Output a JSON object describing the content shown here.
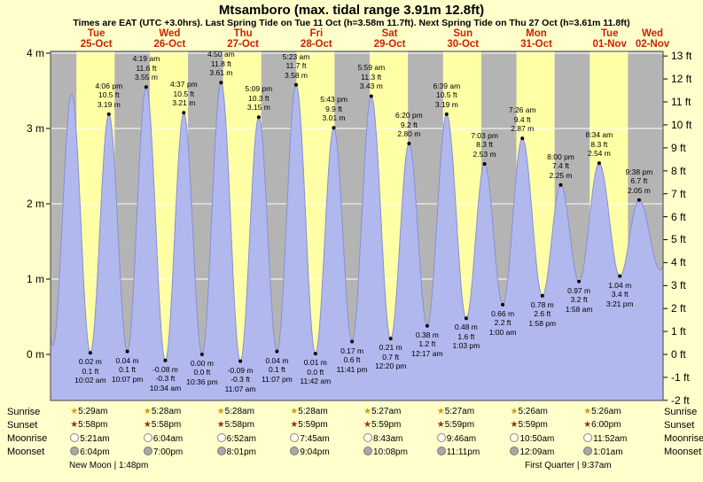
{
  "page": {
    "title": "Mtsamboro (max. tidal range 3.91m 12.8ft)",
    "subtitle": "Times are EAT (UTC +3.0hrs). Last Spring Tide on Tue 11 Oct (h=3.58m 11.7ft). Next Spring Tide on Thu 27 Oct (h=3.61m 11.8ft)"
  },
  "colors": {
    "page_bg": "#ffffcc",
    "day_band": "#ffffa6",
    "night_band": "#b4b4b4",
    "tide_fill": "#b0b8ee",
    "tide_stroke": "#8890d0",
    "header_red": "#cc2200",
    "grid_white": "#ffffff",
    "sunrise_star": "#cf9f00",
    "sunset_star": "#993300"
  },
  "chart_data": {
    "type": "area",
    "title": "Mtsamboro (max. tidal range 3.91m 12.8ft)",
    "subtitle": "Times are EAT (UTC +3.0hrs). Last Spring Tide on Tue 11 Oct (h=3.58m 11.7ft). Next Spring Tide on Thu 27 Oct (h=3.61m 11.8ft)",
    "x_axis_note": "hours measured from 25-Oct 00:00 local time (EAT)",
    "x_domain_hours": [
      -3,
      197.5
    ],
    "sunrise_hour": 5.47,
    "sunset_hour": 17.97,
    "ylim_m": [
      -0.612,
      4.024
    ],
    "y_left_unit": "m",
    "y_right_unit": "ft",
    "y_left_ticks_m": [
      0,
      1,
      2,
      3,
      4
    ],
    "y_right_ticks_ft": [
      -2,
      -1,
      0,
      1,
      2,
      3,
      4,
      5,
      6,
      7,
      8,
      9,
      10,
      11,
      12,
      13
    ],
    "day_labels": [
      {
        "weekday": "Tue",
        "date": "25-Oct",
        "noon_t": 12
      },
      {
        "weekday": "Wed",
        "date": "26-Oct",
        "noon_t": 36
      },
      {
        "weekday": "Thu",
        "date": "27-Oct",
        "noon_t": 60
      },
      {
        "weekday": "Fri",
        "date": "28-Oct",
        "noon_t": 84
      },
      {
        "weekday": "Sat",
        "date": "29-Oct",
        "noon_t": 108
      },
      {
        "weekday": "Sun",
        "date": "30-Oct",
        "noon_t": 132
      },
      {
        "weekday": "Mon",
        "date": "31-Oct",
        "noon_t": 156
      },
      {
        "weekday": "Tue",
        "date": "01-Nov",
        "noon_t": 180
      },
      {
        "weekday": "Wed",
        "date": "02-Nov",
        "noon_t": 204
      }
    ],
    "tide_extremes": [
      {
        "t": -8.3,
        "h": 3.1
      },
      {
        "t": -2.2,
        "h": 0.12
      },
      {
        "t": 3.9,
        "h": 3.46
      },
      {
        "t": 10.03,
        "h": 0.02,
        "type": "low",
        "lines": [
          "0.02 m",
          "0.1 ft",
          "10:02 am"
        ]
      },
      {
        "t": 16.1,
        "h": 3.19,
        "type": "high",
        "lines": [
          "4:06 pm",
          "10.5 ft",
          "3.19 m"
        ]
      },
      {
        "t": 22.12,
        "h": 0.04,
        "type": "low",
        "lines": [
          "0.04 m",
          "0.1 ft",
          "10:07 pm"
        ]
      },
      {
        "t": 28.32,
        "h": 3.55,
        "type": "high",
        "lines": [
          "4:19 am",
          "11.6 ft",
          "3.55 m"
        ]
      },
      {
        "t": 34.57,
        "h": -0.08,
        "type": "low",
        "lines": [
          "-0.08 m",
          "-0.3 ft",
          "10:34 am"
        ]
      },
      {
        "t": 40.62,
        "h": 3.21,
        "type": "high",
        "lines": [
          "4:37 pm",
          "10.5 ft",
          "3.21 m"
        ]
      },
      {
        "t": 46.6,
        "h": 0.0,
        "type": "low",
        "lines": [
          "0.00 m",
          "0.0 ft",
          "10:36 pm"
        ]
      },
      {
        "t": 52.83,
        "h": 3.61,
        "type": "high",
        "lines": [
          "4:50 am",
          "11.8 ft",
          "3.61 m"
        ]
      },
      {
        "t": 59.12,
        "h": -0.09,
        "type": "low",
        "lines": [
          "-0.09 m",
          "-0.3 ft",
          "11:07 am"
        ]
      },
      {
        "t": 65.15,
        "h": 3.15,
        "type": "high",
        "lines": [
          "5:09 pm",
          "10.3 ft",
          "3.15 m"
        ]
      },
      {
        "t": 71.12,
        "h": 0.04,
        "type": "low",
        "lines": [
          "0.04 m",
          "0.1 ft",
          "11:07 pm"
        ]
      },
      {
        "t": 77.38,
        "h": 3.58,
        "type": "high",
        "lines": [
          "5:23 am",
          "11.7 ft",
          "3.58 m"
        ]
      },
      {
        "t": 83.7,
        "h": 0.01,
        "type": "low",
        "lines": [
          "0.01 m",
          "0.0 ft",
          "11:42 am"
        ]
      },
      {
        "t": 89.72,
        "h": 3.01,
        "type": "high",
        "lines": [
          "5:43 pm",
          "9.9 ft",
          "3.01 m"
        ]
      },
      {
        "t": 95.68,
        "h": 0.17,
        "type": "low",
        "lines": [
          "0.17 m",
          "0.6 ft",
          "11:41 pm"
        ]
      },
      {
        "t": 101.98,
        "h": 3.43,
        "type": "high",
        "lines": [
          "5:59 am",
          "11.3 ft",
          "3.43 m"
        ]
      },
      {
        "t": 108.33,
        "h": 0.21,
        "type": "low",
        "lines": [
          "0.21 m",
          "0.7 ft",
          "12:20 pm"
        ]
      },
      {
        "t": 114.33,
        "h": 2.8,
        "type": "high",
        "lines": [
          "6:20 pm",
          "9.2 ft",
          "2.80 m"
        ]
      },
      {
        "t": 120.28,
        "h": 0.38,
        "type": "low",
        "lines": [
          "0.38 m",
          "1.2 ft",
          "12:17 am"
        ]
      },
      {
        "t": 126.65,
        "h": 3.19,
        "type": "high",
        "lines": [
          "6:39 am",
          "10.5 ft",
          "3.19 m"
        ]
      },
      {
        "t": 133.05,
        "h": 0.48,
        "type": "low",
        "lines": [
          "0.48 m",
          "1.6 ft",
          "1:03 pm"
        ]
      },
      {
        "t": 139.05,
        "h": 2.53,
        "type": "high",
        "lines": [
          "7:03 pm",
          "8.3 ft",
          "2.53 m"
        ]
      },
      {
        "t": 145.0,
        "h": 0.66,
        "type": "low",
        "lines": [
          "0.66 m",
          "2.2 ft",
          "1:00 am"
        ]
      },
      {
        "t": 151.43,
        "h": 2.87,
        "type": "high",
        "lines": [
          "7:26 am",
          "9.4 ft",
          "2.87 m"
        ]
      },
      {
        "t": 157.97,
        "h": 0.78,
        "type": "low",
        "lines": [
          "0.78 m",
          "2.6 ft",
          "1:58 pm"
        ]
      },
      {
        "t": 164.0,
        "h": 2.25,
        "type": "high",
        "lines": [
          "8:00 pm",
          "7.4 ft",
          "2.25 m"
        ]
      },
      {
        "t": 169.97,
        "h": 0.97,
        "type": "low",
        "lines": [
          "0.97 m",
          "3.2 ft",
          "1:58 am"
        ]
      },
      {
        "t": 176.57,
        "h": 2.54,
        "type": "high",
        "lines": [
          "8:34 am",
          "8.3 ft",
          "2.54 m"
        ]
      },
      {
        "t": 183.35,
        "h": 1.04,
        "type": "low",
        "lines": [
          "1.04 m",
          "3.4 ft",
          "3:21 pm"
        ]
      },
      {
        "t": 189.63,
        "h": 2.05,
        "type": "high",
        "lines": [
          "9:38 pm",
          "6.7 ft",
          "2.05 m"
        ]
      },
      {
        "t": 196.6,
        "h": 1.12
      },
      {
        "t": 203.0,
        "h": 2.3
      }
    ]
  },
  "sun_moon": {
    "rows": [
      {
        "label": "Sunrise",
        "icon": "sunrise-star-icon",
        "values": [
          "5:29am",
          "5:28am",
          "5:28am",
          "5:28am",
          "5:27am",
          "5:27am",
          "5:26am",
          "5:26am"
        ]
      },
      {
        "label": "Sunset",
        "icon": "sunset-star-icon",
        "values": [
          "5:58pm",
          "5:58pm",
          "5:58pm",
          "5:59pm",
          "5:59pm",
          "5:59pm",
          "5:59pm",
          "6:00pm"
        ]
      },
      {
        "label": "Moonrise",
        "icon": "moonrise-moon-icon",
        "values": [
          "5:21am",
          "6:04am",
          "6:52am",
          "7:45am",
          "8:43am",
          "9:46am",
          "10:50am",
          "11:52am"
        ]
      },
      {
        "label": "Moonset",
        "icon": "moonset-moon-icon",
        "values": [
          "6:04pm",
          "7:00pm",
          "8:01pm",
          "9:04pm",
          "10:08pm",
          "11:11pm",
          "12:09am",
          "1:01am"
        ]
      }
    ],
    "phases": {
      "left": "New Moon | 1:48pm",
      "right": "First Quarter | 9:37am"
    }
  }
}
